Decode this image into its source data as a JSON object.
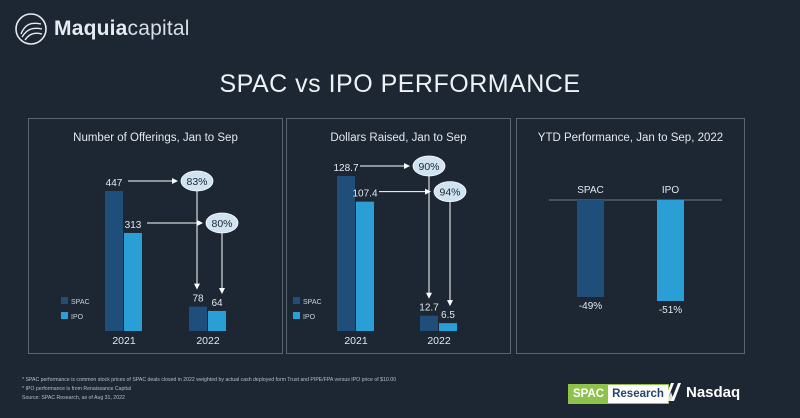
{
  "brand": {
    "name_bold": "Maquia",
    "name_light": "capital"
  },
  "title": "SPAC vs IPO PERFORMANCE",
  "colors": {
    "spac": "#1e4e79",
    "ipo": "#2a9fd6",
    "bubble": "#cfe3f0",
    "arrow": "#ffffff",
    "background": "#1d2633"
  },
  "chart_data": [
    {
      "type": "bar",
      "title": "Number of Offerings, Jan to Sep",
      "categories": [
        "2021",
        "2022"
      ],
      "series": [
        {
          "name": "SPAC",
          "values": [
            447,
            78
          ]
        },
        {
          "name": "IPO",
          "values": [
            313,
            64
          ]
        }
      ],
      "value_labels": [
        [
          "447",
          "78"
        ],
        [
          "313",
          "64"
        ]
      ],
      "change_bubbles": [
        "83%",
        "80%"
      ],
      "legend_position": "bottom-left"
    },
    {
      "type": "bar",
      "title": "Dollars Raised, Jan to Sep",
      "categories": [
        "2021",
        "2022"
      ],
      "series": [
        {
          "name": "SPAC",
          "values": [
            128.7,
            12.7
          ]
        },
        {
          "name": "IPO",
          "values": [
            107.4,
            6.5
          ]
        }
      ],
      "value_labels": [
        [
          "128.7",
          "12.7"
        ],
        [
          "107.4",
          "6.5"
        ]
      ],
      "change_bubbles": [
        "90%",
        "94%"
      ],
      "legend_position": "bottom-left"
    },
    {
      "type": "bar",
      "title": "YTD Performance, Jan to Sep, 2022",
      "categories": [
        "SPAC",
        "IPO"
      ],
      "values": [
        -49,
        -51
      ],
      "value_labels": [
        "-49%",
        "-51%"
      ]
    }
  ],
  "footnotes": [
    "* SPAC performance is common stock prices of SPAC deals closed in 2022 weighted by actual cash deployed form Trust and PIPE/FPA versus IPO price of $10.00",
    "* IPO performance is from Renaissance Capital",
    "Source:  SPAC Research, as of Aug 31, 2022"
  ],
  "partners": {
    "spac_research_a": "SPAC",
    "spac_research_b": "Research",
    "nasdaq": "Nasdaq"
  }
}
